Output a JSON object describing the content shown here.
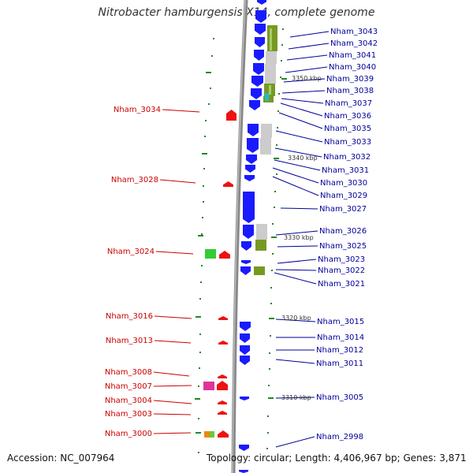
{
  "title": "Nitrobacter hamburgensis X14, complete genome",
  "accession": "Accession: NC_007964",
  "topology": "Topology: circular; Length: 4,406,967 bp; Genes: 3,871",
  "colors": {
    "left_label": "#cc0000",
    "right_label": "#000099",
    "blue_gene": "#1a1aff",
    "red_gene": "#ee1111",
    "olive_gene": "#779922",
    "grey_gene": "#cccccc",
    "tick": "#228822",
    "backbone": "#888888"
  },
  "left_labels": [
    "Nham_3034",
    "Nham_3028",
    "Nham_3024",
    "Nham_3016",
    "Nham_3013",
    "Nham_3008",
    "Nham_3007",
    "Nham_3004",
    "Nham_3003",
    "Nham_3000"
  ],
  "right_labels": [
    "Nham_3043",
    "Nham_3042",
    "Nham_3041",
    "Nham_3040",
    "Nham_3039",
    "Nham_3038",
    "Nham_3037",
    "Nham_3036",
    "Nham_3035",
    "Nham_3033",
    "Nham_3032",
    "Nham_3031",
    "Nham_3030",
    "Nham_3029",
    "Nham_3027",
    "Nham_3026",
    "Nham_3025",
    "Nham_3023",
    "Nham_3022",
    "Nham_3021",
    "Nham_3015",
    "Nham_3014",
    "Nham_3012",
    "Nham_3011",
    "Nham_3005",
    "Nham_2998"
  ],
  "kbp_marks": [
    "3350 kbp",
    "3340 kbp",
    "3330 kbp",
    "3320 kbp",
    "3310 kbp"
  ]
}
